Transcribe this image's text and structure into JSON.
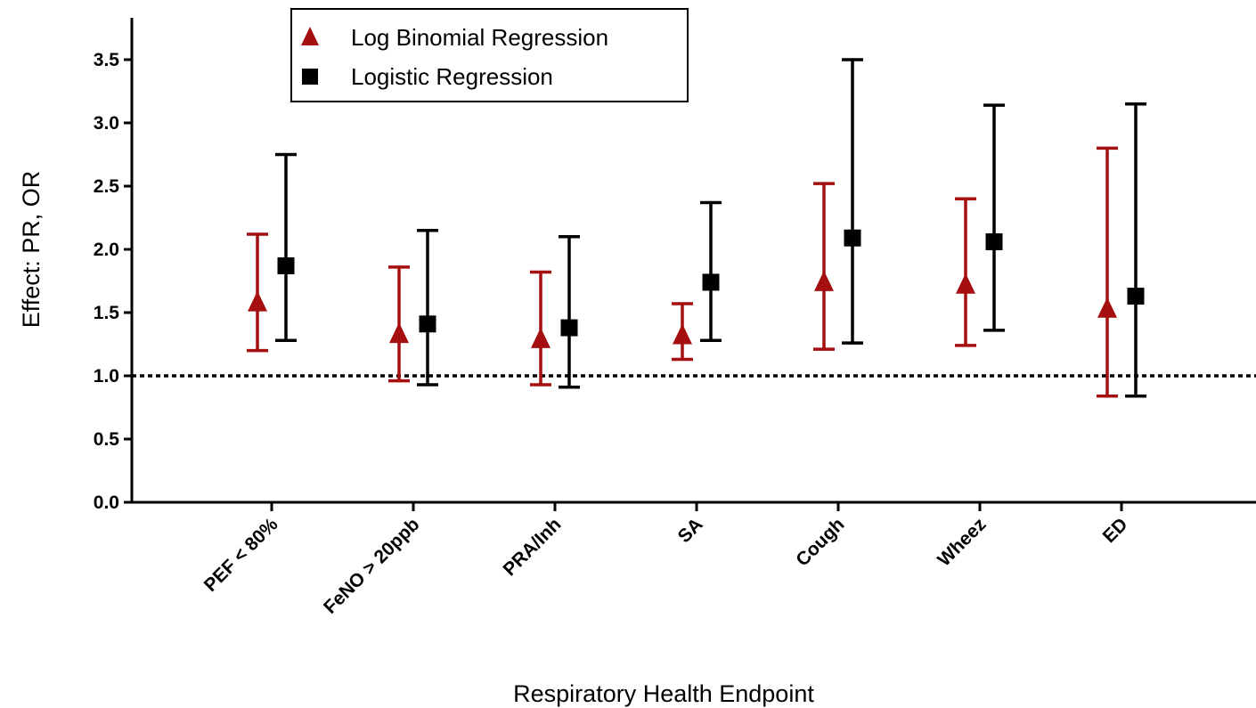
{
  "chart_data": {
    "type": "scatter",
    "subtype": "point estimates with confidence interval error bars",
    "xlabel": "Respiratory Health Endpoint",
    "ylabel": "Effect: PR, OR",
    "ylim": [
      0,
      3.75
    ],
    "yticks": [
      "0.0",
      "0.5",
      "1.0",
      "1.5",
      "2.0",
      "2.5",
      "3.0",
      "3.5"
    ],
    "reference_line": {
      "y": 1.0,
      "style": "dotted"
    },
    "grid": false,
    "legend_position": "top-left",
    "categories": [
      "PEF < 80%",
      "FeNO > 20ppb",
      "PRA/Inh",
      "SA",
      "Cough",
      "Wheez",
      "ED"
    ],
    "series": [
      {
        "name": "Log Binomial Regression",
        "marker": "triangle",
        "color": "#a50f0f",
        "values": [
          1.58,
          1.33,
          1.29,
          1.32,
          1.74,
          1.72,
          1.53
        ],
        "lower": [
          1.2,
          0.96,
          0.93,
          1.13,
          1.21,
          1.24,
          0.84
        ],
        "upper": [
          2.12,
          1.86,
          1.82,
          1.57,
          2.52,
          2.4,
          2.8
        ]
      },
      {
        "name": "Logistic Regression",
        "marker": "square",
        "color": "#000000",
        "values": [
          1.87,
          1.41,
          1.38,
          1.74,
          2.09,
          2.06,
          1.63
        ],
        "lower": [
          1.28,
          0.93,
          0.91,
          1.28,
          1.26,
          1.36,
          0.84
        ],
        "upper": [
          2.75,
          2.15,
          2.1,
          2.37,
          3.5,
          3.14,
          3.15
        ]
      }
    ]
  }
}
